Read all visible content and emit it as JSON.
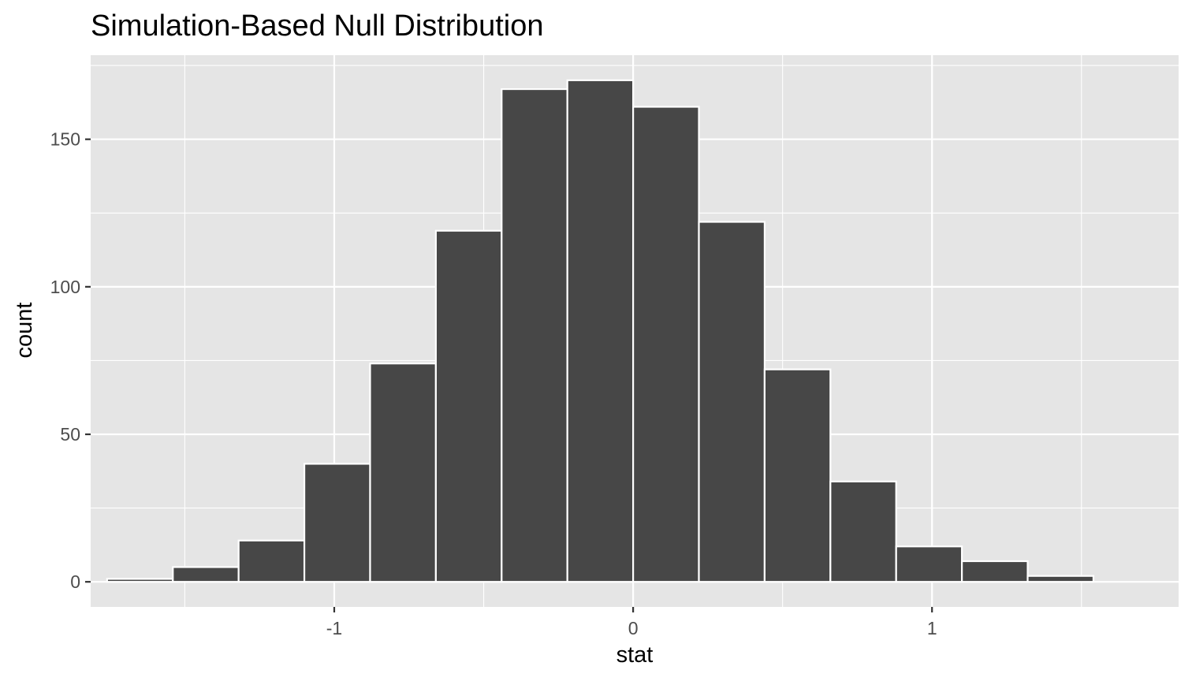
{
  "chart_data": {
    "type": "bar",
    "title": "Simulation-Based Null Distribution",
    "xlabel": "stat",
    "ylabel": "count",
    "bin_width": 0.22,
    "bins": [
      {
        "center": -1.65,
        "count": 1
      },
      {
        "center": -1.43,
        "count": 5
      },
      {
        "center": -1.21,
        "count": 14
      },
      {
        "center": -0.99,
        "count": 40
      },
      {
        "center": -0.77,
        "count": 74
      },
      {
        "center": -0.55,
        "count": 119
      },
      {
        "center": -0.33,
        "count": 167
      },
      {
        "center": -0.11,
        "count": 170
      },
      {
        "center": 0.11,
        "count": 161
      },
      {
        "center": 0.33,
        "count": 122
      },
      {
        "center": 0.55,
        "count": 72
      },
      {
        "center": 0.77,
        "count": 34
      },
      {
        "center": 0.99,
        "count": 12
      },
      {
        "center": 1.21,
        "count": 7
      },
      {
        "center": 1.43,
        "count": 2
      }
    ],
    "xlim": [
      -1.815,
      1.825
    ],
    "ylim": [
      -8.5,
      178.5
    ],
    "x_ticks": [
      -1,
      0,
      1
    ],
    "x_tick_labels": [
      "-1",
      "0",
      "1"
    ],
    "x_minor": [
      -1.5,
      -0.5,
      0.5,
      1.5
    ],
    "y_ticks": [
      0,
      50,
      100,
      150
    ],
    "y_tick_labels": [
      "0",
      "50",
      "100",
      "150"
    ],
    "y_minor": [
      25,
      75,
      125,
      175
    ],
    "grid": true,
    "colors": {
      "panel": "#e5e5e5",
      "grid": "#ffffff",
      "bar_fill": "#474747",
      "bar_outline": "#ffffff",
      "tick": "#333333",
      "tick_label": "#4d4d4d",
      "text": "#000000"
    }
  }
}
